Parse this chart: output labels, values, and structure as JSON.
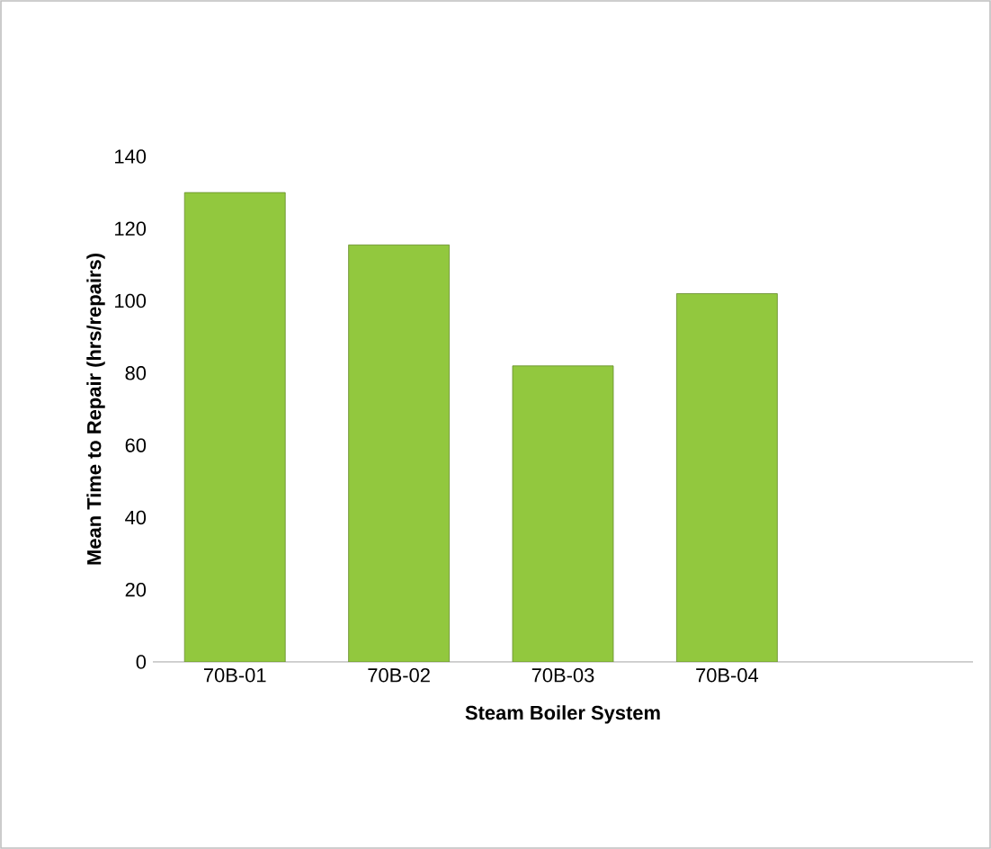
{
  "chart_data": {
    "type": "bar",
    "xlabel": "Steam Boiler System",
    "ylabel": "Mean Time to Repair  (hrs/repairs)",
    "categories": [
      "70B-01",
      "70B-02",
      "70B-03",
      "70B-04",
      null
    ],
    "values": [
      130,
      115.5,
      82,
      102,
      null
    ],
    "color": "#92c83e",
    "ylim": [
      0,
      140
    ],
    "yticks": [
      0,
      20,
      40,
      60,
      80,
      100,
      120,
      140
    ],
    "grid": false
  }
}
